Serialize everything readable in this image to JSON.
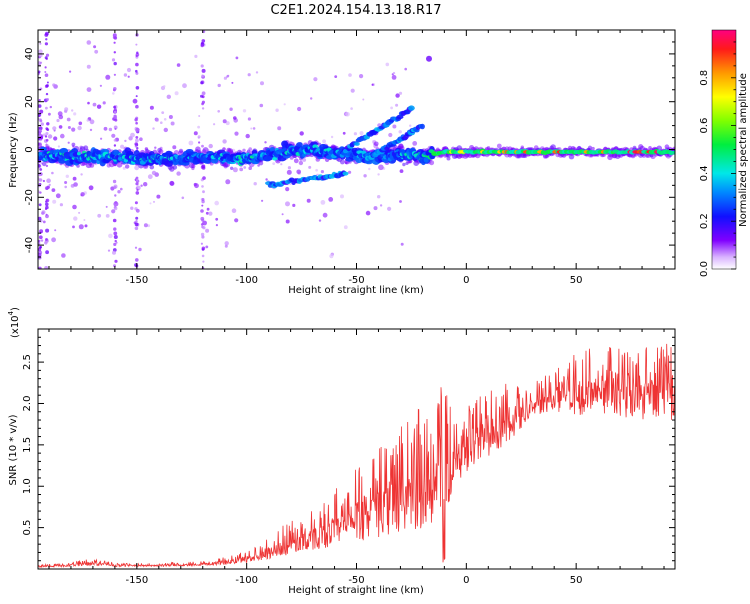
{
  "figure": {
    "title": "C2E1.2024.154.13.18.R17"
  },
  "chart_data": [
    {
      "type": "heatmap",
      "xlabel": "Height of straight line (km)",
      "ylabel": "Frequency (Hz)",
      "xlim": [
        -195,
        95
      ],
      "ylim": [
        -50,
        50
      ],
      "xticks": [
        -150,
        -100,
        -50,
        0,
        50
      ],
      "yticks": [
        -40,
        -20,
        0,
        20,
        40
      ],
      "colorbar": {
        "label": "Normalized spectral amplitude",
        "range": [
          0,
          1
        ],
        "ticks": [
          0.0,
          0.2,
          0.4,
          0.6,
          0.8
        ],
        "tick_labels": [
          "0.0",
          "0.2",
          "0.4",
          "0.6",
          "0.8"
        ]
      },
      "trace": [
        {
          "x": -195,
          "f": -2,
          "a": 0.3
        },
        {
          "x": -180,
          "f": -3,
          "a": 0.35
        },
        {
          "x": -165,
          "f": -3,
          "a": 0.3
        },
        {
          "x": -150,
          "f": -4,
          "a": 0.3
        },
        {
          "x": -135,
          "f": -4,
          "a": 0.3
        },
        {
          "x": -120,
          "f": -3,
          "a": 0.3
        },
        {
          "x": -100,
          "f": -4,
          "a": 0.35
        },
        {
          "x": -85,
          "f": -1,
          "a": 0.3
        },
        {
          "x": -70,
          "f": 0,
          "a": 0.3
        },
        {
          "x": -55,
          "f": -2,
          "a": 0.25
        },
        {
          "x": -40,
          "f": -3,
          "a": 0.25
        },
        {
          "x": -30,
          "f": -2,
          "a": 0.3
        },
        {
          "x": -20,
          "f": -3,
          "a": 0.35
        },
        {
          "x": -15,
          "f": -2,
          "a": 0.4
        },
        {
          "x": -10,
          "f": -1,
          "a": 0.55
        },
        {
          "x": 0,
          "f": -1,
          "a": 0.6
        },
        {
          "x": 10,
          "f": -1,
          "a": 0.7
        },
        {
          "x": 20,
          "f": -1,
          "a": 0.75
        },
        {
          "x": 30,
          "f": -1,
          "a": 0.75
        },
        {
          "x": 40,
          "f": -1,
          "a": 0.8
        },
        {
          "x": 50,
          "f": -1,
          "a": 0.8
        },
        {
          "x": 60,
          "f": -1,
          "a": 0.8
        },
        {
          "x": 70,
          "f": -1,
          "a": 0.85
        },
        {
          "x": 80,
          "f": -1,
          "a": 0.85
        },
        {
          "x": 95,
          "f": -1,
          "a": 0.8
        }
      ],
      "streaks": [
        {
          "x0": -55,
          "f0": 0,
          "x1": -25,
          "f1": 17
        },
        {
          "x0": -45,
          "f0": -4,
          "x1": -20,
          "f1": 10
        },
        {
          "x0": -90,
          "f0": -15,
          "x1": -55,
          "f1": -10
        }
      ]
    },
    {
      "type": "line",
      "xlabel": "Height of straight line (km)",
      "ylabel": "SNR (10 * v/v)",
      "multiplier_label": "(x10",
      "multiplier_exponent": "4",
      "multiplier_close": ")",
      "xlim": [
        -195,
        95
      ],
      "ylim": [
        0,
        2.9
      ],
      "xticks": [
        -150,
        -100,
        -50,
        0,
        50
      ],
      "yticks": [
        0.5,
        1.0,
        1.5,
        2.0,
        2.5
      ],
      "ytick_labels": [
        "0.5",
        "1.0",
        "1.5",
        "2.0",
        "2.5"
      ],
      "color": "#ee3333",
      "envelope": [
        {
          "x": -195,
          "base": 0.02,
          "spread": 0.03
        },
        {
          "x": -180,
          "base": 0.03,
          "spread": 0.05
        },
        {
          "x": -170,
          "base": 0.04,
          "spread": 0.1
        },
        {
          "x": -160,
          "base": 0.03,
          "spread": 0.04
        },
        {
          "x": -140,
          "base": 0.03,
          "spread": 0.04
        },
        {
          "x": -120,
          "base": 0.04,
          "spread": 0.06
        },
        {
          "x": -105,
          "base": 0.06,
          "spread": 0.12
        },
        {
          "x": -95,
          "base": 0.1,
          "spread": 0.2
        },
        {
          "x": -85,
          "base": 0.15,
          "spread": 0.35
        },
        {
          "x": -75,
          "base": 0.2,
          "spread": 0.45
        },
        {
          "x": -65,
          "base": 0.25,
          "spread": 0.6
        },
        {
          "x": -55,
          "base": 0.3,
          "spread": 0.8
        },
        {
          "x": -45,
          "base": 0.35,
          "spread": 1.0
        },
        {
          "x": -35,
          "base": 0.4,
          "spread": 1.2
        },
        {
          "x": -25,
          "base": 0.45,
          "spread": 1.4
        },
        {
          "x": -15,
          "base": 0.5,
          "spread": 1.7
        },
        {
          "x": -10,
          "base": 0.6,
          "spread": 1.6
        },
        {
          "x": -5,
          "base": 1.0,
          "spread": 0.8
        },
        {
          "x": 5,
          "base": 1.3,
          "spread": 0.8
        },
        {
          "x": 20,
          "base": 1.5,
          "spread": 0.8
        },
        {
          "x": 30,
          "base": 1.85,
          "spread": 0.4
        },
        {
          "x": 40,
          "base": 1.9,
          "spread": 0.5
        },
        {
          "x": 50,
          "base": 1.85,
          "spread": 0.8
        },
        {
          "x": 60,
          "base": 1.9,
          "spread": 0.8
        },
        {
          "x": 70,
          "base": 1.8,
          "spread": 0.9
        },
        {
          "x": 80,
          "base": 1.8,
          "spread": 0.9
        },
        {
          "x": 95,
          "base": 1.8,
          "spread": 1.0
        }
      ]
    }
  ]
}
